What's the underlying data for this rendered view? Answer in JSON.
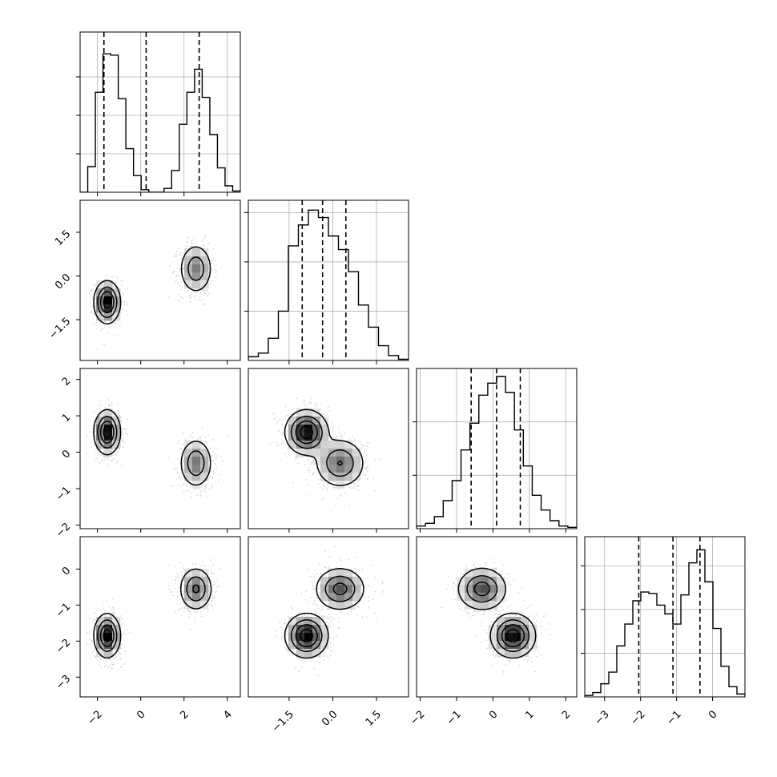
{
  "chart_data": {
    "type": "corner",
    "grid": true,
    "colors": {
      "ink": "#000000",
      "grid": "#b0b0b0",
      "point": "#808080"
    },
    "parameters": [
      {
        "range": [
          -2.8,
          4.6
        ],
        "ticks": [
          -2,
          0,
          2,
          4
        ],
        "tick_labels": [
          "−2",
          "0",
          "2",
          "4"
        ],
        "quantiles": [
          -1.7,
          0.25,
          2.7
        ],
        "hist_counts": [
          0,
          20,
          78,
          108,
          107,
          73,
          34,
          13,
          2,
          0,
          0,
          3,
          17,
          53,
          78,
          96,
          74,
          45,
          19,
          5,
          1
        ]
      },
      {
        "range": [
          -2.9,
          2.6
        ],
        "ticks": [
          -1.5,
          0.0,
          1.5
        ],
        "tick_labels": [
          "−1.5",
          "0.0",
          "1.5"
        ],
        "quantiles": [
          -1.05,
          -0.35,
          0.45
        ],
        "hist_counts": [
          3,
          6,
          18,
          40,
          93,
          110,
          122,
          116,
          101,
          90,
          72,
          45,
          27,
          12,
          4,
          1
        ]
      },
      {
        "range": [
          -2.1,
          2.3
        ],
        "ticks": [
          -2,
          -1,
          0,
          1,
          2
        ],
        "tick_labels": [
          "−2",
          "−1",
          "0",
          "1",
          "2"
        ],
        "quantiles": [
          -0.6,
          0.1,
          0.75
        ],
        "hist_counts": [
          2,
          4,
          9,
          21,
          36,
          59,
          79,
          100,
          109,
          114,
          102,
          74,
          47,
          25,
          14,
          6,
          2,
          1
        ]
      },
      {
        "range": [
          -3.55,
          0.9
        ],
        "ticks": [
          -3,
          -2,
          -1,
          0
        ],
        "tick_labels": [
          "−3",
          "−2",
          "−1",
          "0"
        ],
        "quantiles": [
          -2.05,
          -1.1,
          -0.35
        ],
        "hist_counts": [
          1,
          3,
          9,
          17,
          35,
          50,
          66,
          72,
          71,
          63,
          57,
          50,
          70,
          92,
          101,
          79,
          47,
          21,
          7,
          2
        ]
      }
    ],
    "hist_max": [
      125,
      130,
      120,
      110
    ],
    "hist_ticks": [
      [
        30,
        60,
        90
      ],
      [
        40,
        80,
        120
      ],
      [
        40,
        80
      ],
      [
        30,
        60,
        90
      ]
    ],
    "components": [
      {
        "weight": 0.55,
        "mean": [
          -1.55,
          -0.9,
          0.55,
          -1.85
        ],
        "sd": [
          0.3,
          0.36,
          0.3,
          0.3
        ]
      },
      {
        "weight": 0.45,
        "mean": [
          2.55,
          0.25,
          -0.3,
          -0.55
        ],
        "sd": [
          0.38,
          0.43,
          0.34,
          0.3
        ]
      }
    ]
  }
}
